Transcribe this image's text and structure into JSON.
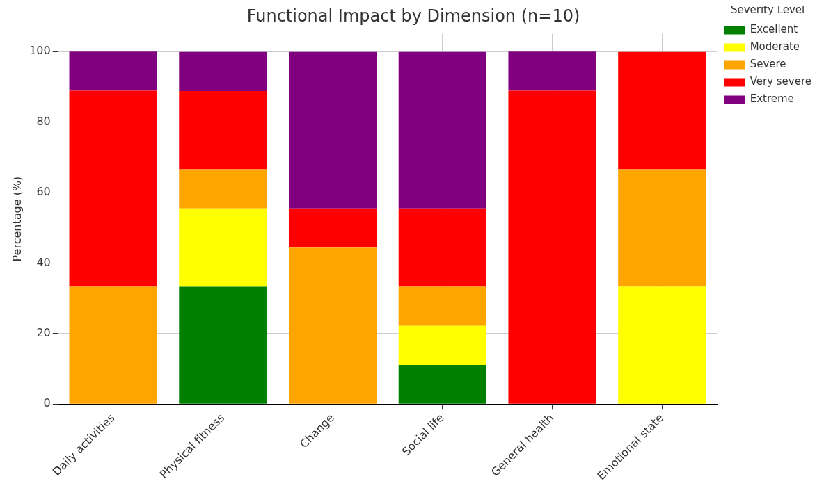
{
  "chart_data": {
    "type": "bar",
    "title": "Functional Impact by Dimension (n=10)",
    "ylabel": "Percentage (%)",
    "legend_title": "Severity Level",
    "categories": [
      "Daily activities",
      "Physical fitness",
      "Change",
      "Social life",
      "General health",
      "Emotional state"
    ],
    "stacked": true,
    "ylim": [
      0,
      105
    ],
    "yticks": [
      0,
      20,
      40,
      60,
      80,
      100
    ],
    "grid": true,
    "legend": "top right",
    "series": [
      {
        "name": "Excellent",
        "color": "#008000",
        "values": [
          0,
          33.3,
          0,
          11.1,
          0,
          0
        ]
      },
      {
        "name": "Moderate",
        "color": "#ffff00",
        "values": [
          0,
          22.2,
          0,
          11.1,
          0,
          33.3
        ]
      },
      {
        "name": "Severe",
        "color": "#ffa500",
        "values": [
          33.3,
          11.1,
          44.4,
          11.1,
          0,
          33.3
        ]
      },
      {
        "name": "Very severe",
        "color": "#ff0000",
        "values": [
          55.6,
          22.2,
          11.1,
          22.2,
          88.9,
          33.3
        ]
      },
      {
        "name": "Extreme",
        "color": "#800080",
        "values": [
          11.1,
          11.1,
          44.4,
          44.4,
          11.1,
          0
        ]
      }
    ]
  }
}
